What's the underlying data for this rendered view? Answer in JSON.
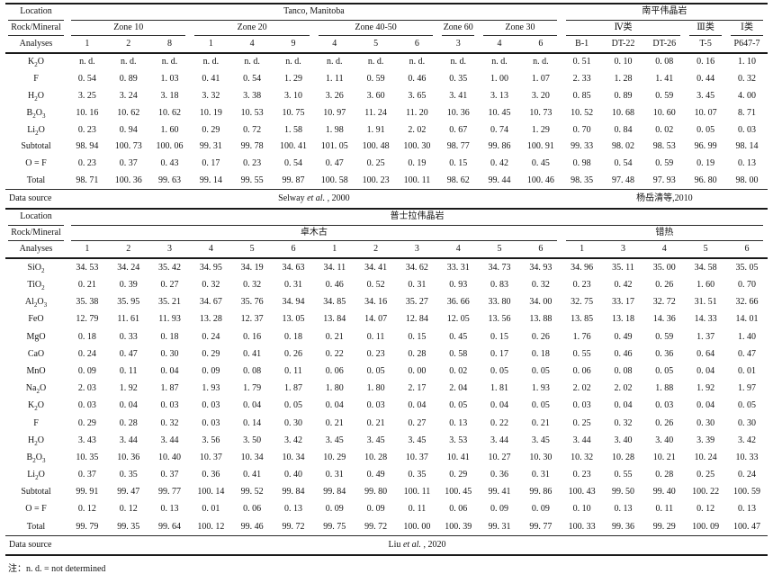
{
  "note": "注：n. d. = not determined",
  "labels": {
    "location": "Location",
    "rock_mineral": "Rock/Mineral",
    "analyses": "Analyses",
    "data_source": "Data source"
  },
  "table1": {
    "locations": [
      {
        "label": "Tanco, Manitoba",
        "span": 12
      },
      {
        "label": "南平伟晶岩",
        "span": 5
      }
    ],
    "groups": [
      {
        "label": "Zone 10",
        "span": 3
      },
      {
        "label": "Zone 20",
        "span": 3
      },
      {
        "label": "Zone 40-50",
        "span": 3
      },
      {
        "label": "Zone 60",
        "span": 1
      },
      {
        "label": "Zone 30",
        "span": 2
      },
      {
        "label": "Ⅳ类",
        "span": 3
      },
      {
        "label": "Ⅲ类",
        "span": 1
      },
      {
        "label": "Ⅰ类",
        "span": 1
      }
    ],
    "analyses": [
      "1",
      "2",
      "8",
      "1",
      "4",
      "9",
      "4",
      "5",
      "6",
      "3",
      "4",
      "6",
      "B-1",
      "DT-22",
      "DT-26",
      "T-5",
      "P647-7"
    ],
    "rows": [
      {
        "label": "K2O",
        "values": [
          "n. d.",
          "n. d.",
          "n. d.",
          "n. d.",
          "n. d.",
          "n. d.",
          "n. d.",
          "n. d.",
          "n. d.",
          "n. d.",
          "n. d.",
          "n. d.",
          "0. 51",
          "0. 10",
          "0. 08",
          "0. 16",
          "1. 10"
        ]
      },
      {
        "label": "F",
        "values": [
          "0. 54",
          "0. 89",
          "1. 03",
          "0. 41",
          "0. 54",
          "1. 29",
          "1. 11",
          "0. 59",
          "0. 46",
          "0. 35",
          "1. 00",
          "1. 07",
          "2. 33",
          "1. 28",
          "1. 41",
          "0. 44",
          "0. 32"
        ]
      },
      {
        "label": "H2O",
        "values": [
          "3. 25",
          "3. 24",
          "3. 18",
          "3. 32",
          "3. 38",
          "3. 10",
          "3. 26",
          "3. 60",
          "3. 65",
          "3. 41",
          "3. 13",
          "3. 20",
          "0. 85",
          "0. 89",
          "0. 59",
          "3. 45",
          "4. 00"
        ]
      },
      {
        "label": "B2O3",
        "values": [
          "10. 16",
          "10. 62",
          "10. 62",
          "10. 19",
          "10. 53",
          "10. 75",
          "10. 97",
          "11. 24",
          "11. 20",
          "10. 36",
          "10. 45",
          "10. 73",
          "10. 52",
          "10. 68",
          "10. 60",
          "10. 07",
          "8. 71"
        ]
      },
      {
        "label": "Li2O",
        "values": [
          "0. 23",
          "0. 94",
          "1. 60",
          "0. 29",
          "0. 72",
          "1. 58",
          "1. 98",
          "1. 91",
          "2. 02",
          "0. 67",
          "0. 74",
          "1. 29",
          "0. 70",
          "0. 84",
          "0. 02",
          "0. 05",
          "0. 03"
        ]
      },
      {
        "label": "Subtotal",
        "values": [
          "98. 94",
          "100. 73",
          "100. 06",
          "99. 31",
          "99. 78",
          "100. 41",
          "101. 05",
          "100. 48",
          "100. 30",
          "98. 77",
          "99. 86",
          "100. 91",
          "99. 33",
          "98. 02",
          "98. 53",
          "96. 99",
          "98. 14"
        ]
      },
      {
        "label": "O = F",
        "values": [
          "0. 23",
          "0. 37",
          "0. 43",
          "0. 17",
          "0. 23",
          "0. 54",
          "0. 47",
          "0. 25",
          "0. 19",
          "0. 15",
          "0. 42",
          "0. 45",
          "0. 98",
          "0. 54",
          "0. 59",
          "0. 19",
          "0. 13"
        ]
      },
      {
        "label": "Total",
        "values": [
          "98. 71",
          "100. 36",
          "99. 63",
          "99. 14",
          "99. 55",
          "99. 87",
          "100. 58",
          "100. 23",
          "100. 11",
          "98. 62",
          "99. 44",
          "100. 46",
          "98. 35",
          "97. 48",
          "97. 93",
          "96. 80",
          "98. 00"
        ]
      }
    ],
    "sources": [
      {
        "span": 12,
        "parts": [
          {
            "t": "Selway ",
            "i": false
          },
          {
            "t": "et al.",
            "i": true
          },
          {
            "t": " , 2000",
            "i": false
          }
        ]
      },
      {
        "span": 5,
        "parts": [
          {
            "t": "杨岳清等,2010",
            "i": false
          }
        ]
      }
    ]
  },
  "table2": {
    "locations": [
      {
        "label": "普士拉伟晶岩",
        "span": 17
      }
    ],
    "groups": [
      {
        "label": "卓木古",
        "span": 12
      },
      {
        "label": "错热",
        "span": 5
      }
    ],
    "analyses": [
      "1",
      "2",
      "3",
      "4",
      "5",
      "6",
      "1",
      "2",
      "3",
      "4",
      "5",
      "6",
      "1",
      "3",
      "4",
      "5",
      "6"
    ],
    "rows": [
      {
        "label": "SiO2",
        "values": [
          "34. 53",
          "34. 24",
          "35. 42",
          "34. 95",
          "34. 19",
          "34. 63",
          "34. 11",
          "34. 41",
          "34. 62",
          "33. 31",
          "34. 73",
          "34. 93",
          "34. 96",
          "35. 11",
          "35. 00",
          "34. 58",
          "35. 05"
        ]
      },
      {
        "label": "TiO2",
        "values": [
          "0. 21",
          "0. 39",
          "0. 27",
          "0. 32",
          "0. 32",
          "0. 31",
          "0. 46",
          "0. 52",
          "0. 31",
          "0. 93",
          "0. 83",
          "0. 32",
          "0. 23",
          "0. 42",
          "0. 26",
          "1. 60",
          "0. 70"
        ]
      },
      {
        "label": "Al2O3",
        "values": [
          "35. 38",
          "35. 95",
          "35. 21",
          "34. 67",
          "35. 76",
          "34. 94",
          "34. 85",
          "34. 16",
          "35. 27",
          "36. 66",
          "33. 80",
          "34. 00",
          "32. 75",
          "33. 17",
          "32. 72",
          "31. 51",
          "32. 66"
        ]
      },
      {
        "label": "FeO",
        "values": [
          "12. 79",
          "11. 61",
          "11. 93",
          "13. 28",
          "12. 37",
          "13. 05",
          "13. 84",
          "14. 07",
          "12. 84",
          "12. 05",
          "13. 56",
          "13. 88",
          "13. 85",
          "13. 18",
          "14. 36",
          "14. 33",
          "14. 01"
        ]
      },
      {
        "label": "MgO",
        "values": [
          "0. 18",
          "0. 33",
          "0. 18",
          "0. 24",
          "0. 16",
          "0. 18",
          "0. 21",
          "0. 11",
          "0. 15",
          "0. 45",
          "0. 15",
          "0. 26",
          "1. 76",
          "0. 49",
          "0. 59",
          "1. 37",
          "1. 40"
        ]
      },
      {
        "label": "CaO",
        "values": [
          "0. 24",
          "0. 47",
          "0. 30",
          "0. 29",
          "0. 41",
          "0. 26",
          "0. 22",
          "0. 23",
          "0. 28",
          "0. 58",
          "0. 17",
          "0. 18",
          "0. 55",
          "0. 46",
          "0. 36",
          "0. 64",
          "0. 47"
        ]
      },
      {
        "label": "MnO",
        "values": [
          "0. 09",
          "0. 11",
          "0. 04",
          "0. 09",
          "0. 08",
          "0. 11",
          "0. 06",
          "0. 05",
          "0. 00",
          "0. 02",
          "0. 05",
          "0. 05",
          "0. 06",
          "0. 08",
          "0. 05",
          "0. 04",
          "0. 01"
        ]
      },
      {
        "label": "Na2O",
        "values": [
          "2. 03",
          "1. 92",
          "1. 87",
          "1. 93",
          "1. 79",
          "1. 87",
          "1. 80",
          "1. 80",
          "2. 17",
          "2. 04",
          "1. 81",
          "1. 93",
          "2. 02",
          "2. 02",
          "1. 88",
          "1. 92",
          "1. 97"
        ]
      },
      {
        "label": "K2O",
        "values": [
          "0. 03",
          "0. 04",
          "0. 03",
          "0. 03",
          "0. 04",
          "0. 05",
          "0. 04",
          "0. 03",
          "0. 04",
          "0. 05",
          "0. 04",
          "0. 05",
          "0. 03",
          "0. 04",
          "0. 03",
          "0. 04",
          "0. 05"
        ]
      },
      {
        "label": "F",
        "values": [
          "0. 29",
          "0. 28",
          "0. 32",
          "0. 03",
          "0. 14",
          "0. 30",
          "0. 21",
          "0. 21",
          "0. 27",
          "0. 13",
          "0. 22",
          "0. 21",
          "0. 25",
          "0. 32",
          "0. 26",
          "0. 30",
          "0. 30"
        ]
      },
      {
        "label": "H2O",
        "values": [
          "3. 43",
          "3. 44",
          "3. 44",
          "3. 56",
          "3. 50",
          "3. 42",
          "3. 45",
          "3. 45",
          "3. 45",
          "3. 53",
          "3. 44",
          "3. 45",
          "3. 44",
          "3. 40",
          "3. 40",
          "3. 39",
          "3. 42"
        ]
      },
      {
        "label": "B2O3",
        "values": [
          "10. 35",
          "10. 36",
          "10. 40",
          "10. 37",
          "10. 34",
          "10. 34",
          "10. 29",
          "10. 28",
          "10. 37",
          "10. 41",
          "10. 27",
          "10. 30",
          "10. 32",
          "10. 28",
          "10. 21",
          "10. 24",
          "10. 33"
        ]
      },
      {
        "label": "Li2O",
        "values": [
          "0. 37",
          "0. 35",
          "0. 37",
          "0. 36",
          "0. 41",
          "0. 40",
          "0. 31",
          "0. 49",
          "0. 35",
          "0. 29",
          "0. 36",
          "0. 31",
          "0. 23",
          "0. 55",
          "0. 28",
          "0. 25",
          "0. 24"
        ]
      },
      {
        "label": "Subtotal",
        "values": [
          "99. 91",
          "99. 47",
          "99. 77",
          "100. 14",
          "99. 52",
          "99. 84",
          "99. 84",
          "99. 80",
          "100. 11",
          "100. 45",
          "99. 41",
          "99. 86",
          "100. 43",
          "99. 50",
          "99. 40",
          "100. 22",
          "100. 59"
        ]
      },
      {
        "label": "O = F",
        "values": [
          "0. 12",
          "0. 12",
          "0. 13",
          "0. 01",
          "0. 06",
          "0. 13",
          "0. 09",
          "0. 09",
          "0. 11",
          "0. 06",
          "0. 09",
          "0. 09",
          "0. 10",
          "0. 13",
          "0. 11",
          "0. 12",
          "0. 13"
        ]
      },
      {
        "label": "Total",
        "values": [
          "99. 79",
          "99. 35",
          "99. 64",
          "100. 12",
          "99. 46",
          "99. 72",
          "99. 75",
          "99. 72",
          "100. 00",
          "100. 39",
          "99. 31",
          "99. 77",
          "100. 33",
          "99. 36",
          "99. 29",
          "100. 09",
          "100. 47"
        ]
      }
    ],
    "sources": [
      {
        "span": 17,
        "parts": [
          {
            "t": "Liu ",
            "i": false
          },
          {
            "t": "et al.",
            "i": true
          },
          {
            "t": " , 2020",
            "i": false
          }
        ]
      }
    ]
  }
}
